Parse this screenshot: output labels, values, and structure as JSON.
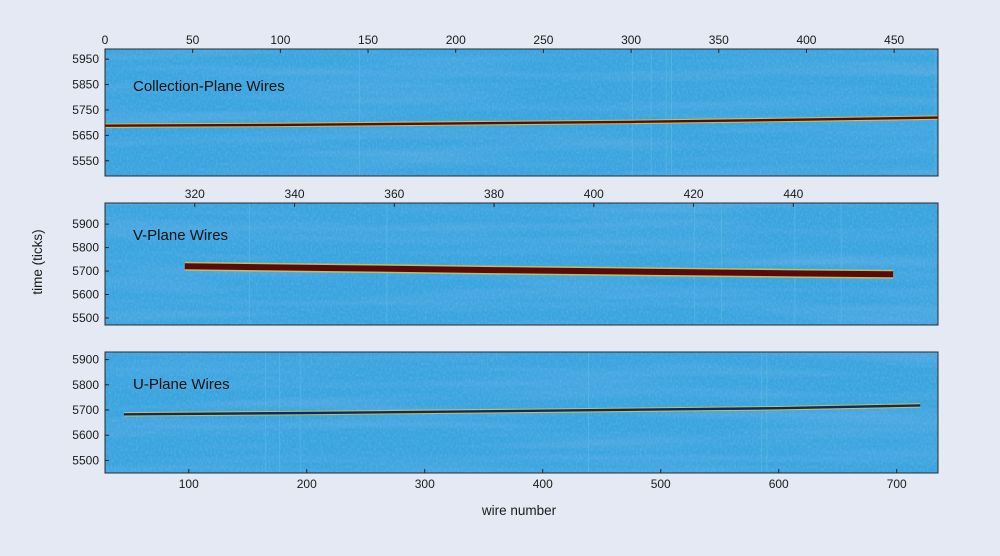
{
  "chart_data": {
    "type": "heatmap",
    "ylabel": "time (ticks)",
    "xlabel": "wire number",
    "colors": {
      "background": "#e4e9f4",
      "noise_base": "#3aa4de",
      "noise_dark": "#1f7fc4",
      "noise_light": "#5fc0e6",
      "track_core": "#5a0a0a",
      "track_edge": "#d4c24a",
      "track_dark_blue": "#0d2a66"
    },
    "panels": [
      {
        "id": "collection",
        "title": "Collection-Plane Wires",
        "x_axis_position": "top",
        "xlim": [
          0,
          475
        ],
        "ylim": [
          5490,
          5990
        ],
        "x_ticks": [
          0,
          50,
          100,
          150,
          200,
          250,
          300,
          350,
          400,
          450
        ],
        "y_ticks": [
          5550,
          5650,
          5750,
          5850,
          5950
        ],
        "track": [
          [
            0,
            5688
          ],
          [
            100,
            5691
          ],
          [
            200,
            5697
          ],
          [
            300,
            5703
          ],
          [
            400,
            5712
          ],
          [
            475,
            5720
          ]
        ],
        "track_style": "thin"
      },
      {
        "id": "v-plane",
        "title": "V-Plane Wires",
        "x_axis_position": "top",
        "xlim": [
          302,
          469
        ],
        "ylim": [
          5470,
          5990
        ],
        "x_ticks": [
          320,
          340,
          360,
          380,
          400,
          420,
          440
        ],
        "y_ticks": [
          5500,
          5600,
          5700,
          5800,
          5900
        ],
        "track": [
          [
            318,
            5720
          ],
          [
            350,
            5712
          ],
          [
            380,
            5704
          ],
          [
            410,
            5697
          ],
          [
            440,
            5690
          ],
          [
            460,
            5686
          ]
        ],
        "track_style": "thick"
      },
      {
        "id": "u-plane",
        "title": "U-Plane Wires",
        "x_axis_position": "bottom",
        "xlim": [
          29,
          735
        ],
        "ylim": [
          5450,
          5930
        ],
        "x_ticks": [
          100,
          200,
          300,
          400,
          500,
          600,
          700
        ],
        "y_ticks": [
          5500,
          5600,
          5700,
          5800,
          5900
        ],
        "track": [
          [
            45,
            5683
          ],
          [
            200,
            5688
          ],
          [
            400,
            5697
          ],
          [
            600,
            5707
          ],
          [
            720,
            5718
          ]
        ],
        "track_style": "thin"
      }
    ]
  }
}
